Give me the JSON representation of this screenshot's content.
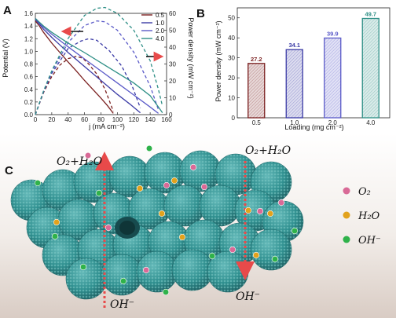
{
  "colors": {
    "0.5": "#7a1f1f",
    "1.0": "#3b3ba6",
    "2.0": "#5a5ac8",
    "4.0": "#2e8f86",
    "sphere": "#2f8f8f",
    "o2": "#d96a97",
    "h2o": "#e2a21c",
    "oh": "#2fb24a",
    "arrow": "#e84a4a"
  },
  "chart_data": [
    {
      "panel": "A",
      "type": "line",
      "xlabel": "j (mA cm⁻²)",
      "ylabel": "Potential (V)",
      "y2label": "Power density (mW cm⁻²)",
      "xlim": [
        0,
        160
      ],
      "ylim": [
        0.0,
        1.6
      ],
      "y2lim": [
        0,
        60
      ],
      "xticks": [
        "0",
        "20",
        "40",
        "60",
        "80",
        "100",
        "120",
        "140",
        "160"
      ],
      "yticks": [
        "0.0",
        "0.2",
        "0.4",
        "0.6",
        "0.8",
        "1.0",
        "1.2",
        "1.4",
        "1.6"
      ],
      "y2ticks": [
        "0",
        "10",
        "20",
        "30",
        "40",
        "50",
        "60"
      ],
      "legend": [
        "0.5",
        "1.0",
        "2.0",
        "4.0"
      ],
      "legend_position": "top-right",
      "series": [
        {
          "name": "0.5",
          "polarization": [
            [
              0,
              1.48
            ],
            [
              5,
              1.4
            ],
            [
              10,
              1.3
            ],
            [
              20,
              1.13
            ],
            [
              30,
              0.98
            ],
            [
              40,
              0.83
            ],
            [
              50,
              0.69
            ],
            [
              60,
              0.54
            ],
            [
              70,
              0.4
            ],
            [
              80,
              0.26
            ],
            [
              88,
              0.14
            ],
            [
              95,
              0.02
            ]
          ],
          "power": [
            [
              0,
              0
            ],
            [
              10,
              13
            ],
            [
              20,
              22.6
            ],
            [
              30,
              29.4
            ],
            [
              40,
              33.2
            ],
            [
              50,
              34.5
            ],
            [
              58,
              33.4
            ],
            [
              65,
              30
            ],
            [
              75,
              24
            ],
            [
              85,
              15
            ],
            [
              95,
              2
            ]
          ]
        },
        {
          "name": "1.0",
          "polarization": [
            [
              0,
              1.5
            ],
            [
              5,
              1.43
            ],
            [
              10,
              1.35
            ],
            [
              20,
              1.22
            ],
            [
              30,
              1.1
            ],
            [
              40,
              0.98
            ],
            [
              60,
              0.76
            ],
            [
              80,
              0.54
            ],
            [
              100,
              0.32
            ],
            [
              115,
              0.17
            ],
            [
              128,
              0.03
            ]
          ],
          "power": [
            [
              0,
              0
            ],
            [
              10,
              13.5
            ],
            [
              20,
              24.4
            ],
            [
              40,
              39.2
            ],
            [
              55,
              43.5
            ],
            [
              65,
              45
            ],
            [
              75,
              44
            ],
            [
              90,
              38
            ],
            [
              105,
              29
            ],
            [
              118,
              17
            ],
            [
              128,
              4
            ]
          ]
        },
        {
          "name": "2.0",
          "polarization": [
            [
              0,
              1.52
            ],
            [
              5,
              1.45
            ],
            [
              10,
              1.38
            ],
            [
              20,
              1.27
            ],
            [
              40,
              1.07
            ],
            [
              60,
              0.88
            ],
            [
              80,
              0.69
            ],
            [
              100,
              0.5
            ],
            [
              120,
              0.31
            ],
            [
              140,
              0.12
            ],
            [
              150,
              0.02
            ]
          ],
          "power": [
            [
              0,
              0
            ],
            [
              10,
              13.8
            ],
            [
              20,
              25.4
            ],
            [
              40,
              42.8
            ],
            [
              60,
              52.8
            ],
            [
              75,
              55.5
            ],
            [
              85,
              55
            ],
            [
              100,
              50
            ],
            [
              120,
              37
            ],
            [
              140,
              17
            ],
            [
              150,
              3
            ]
          ]
        },
        {
          "name": "4.0",
          "polarization": [
            [
              0,
              1.52
            ],
            [
              5,
              1.46
            ],
            [
              10,
              1.4
            ],
            [
              20,
              1.3
            ],
            [
              40,
              1.13
            ],
            [
              60,
              0.98
            ],
            [
              80,
              0.82
            ],
            [
              100,
              0.66
            ],
            [
              120,
              0.5
            ],
            [
              140,
              0.3
            ],
            [
              150,
              0.12
            ],
            [
              155,
              0.03
            ]
          ],
          "power": [
            [
              0,
              0
            ],
            [
              10,
              14
            ],
            [
              20,
              26
            ],
            [
              40,
              45.2
            ],
            [
              60,
              58.8
            ],
            [
              75,
              63
            ],
            [
              85,
              63.5
            ],
            [
              100,
              60
            ],
            [
              120,
              50
            ],
            [
              140,
              32
            ],
            [
              150,
              15
            ],
            [
              155,
              5
            ]
          ]
        }
      ]
    },
    {
      "panel": "B",
      "type": "bar",
      "xlabel": "Loading (mg cm⁻²)",
      "ylabel": "Power density (mW cm⁻²)",
      "ylim": [
        0,
        55
      ],
      "yticks": [
        "0",
        "10",
        "20",
        "30",
        "40",
        "50"
      ],
      "categories": [
        "0.5",
        "1.0",
        "2.0",
        "4.0"
      ],
      "values": [
        27.2,
        34.1,
        39.9,
        49.7
      ],
      "labels": [
        "27.2",
        "34.1",
        "39.9",
        "49.7"
      ]
    }
  ],
  "panel_c": {
    "letter": "C",
    "top_label": "O₂+H₂O",
    "bottom_label": "OH⁻",
    "legend": [
      {
        "key": "o2",
        "label": "O₂"
      },
      {
        "key": "h2o",
        "label": "H₂O"
      },
      {
        "key": "oh",
        "label": "OH⁻"
      }
    ]
  }
}
